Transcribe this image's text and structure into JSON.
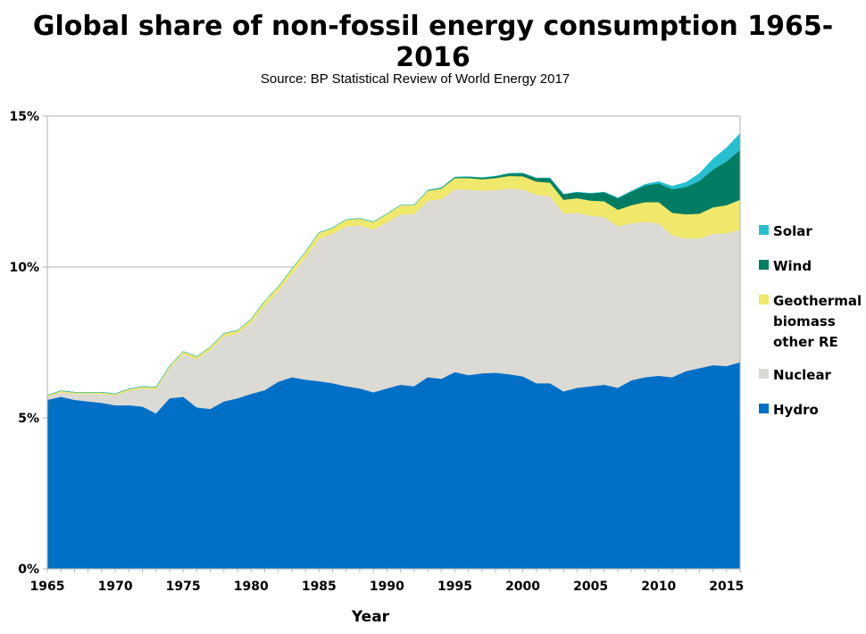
{
  "chart_data": {
    "type": "area",
    "stacked": true,
    "title": "Global share of non-fossil energy consumption 1965-2016",
    "subtitle": "Source: BP Statistical Review of World Energy 2017",
    "xlabel": "Year",
    "ylabel": "",
    "xlim": [
      1965,
      2016
    ],
    "ylim": [
      0,
      15
    ],
    "x_ticks": [
      "1965",
      "1970",
      "1975",
      "1980",
      "1985",
      "1990",
      "1995",
      "2000",
      "2005",
      "2010",
      "2015"
    ],
    "y_ticks": [
      "0%",
      "5%",
      "10%",
      "15%"
    ],
    "grid": "horizontal",
    "legend_position": "right",
    "x": [
      1965,
      1966,
      1967,
      1968,
      1969,
      1970,
      1971,
      1972,
      1973,
      1974,
      1975,
      1976,
      1977,
      1978,
      1979,
      1980,
      1981,
      1982,
      1983,
      1984,
      1985,
      1986,
      1987,
      1988,
      1989,
      1990,
      1991,
      1992,
      1993,
      1994,
      1995,
      1996,
      1997,
      1998,
      1999,
      2000,
      2001,
      2002,
      2003,
      2004,
      2005,
      2006,
      2007,
      2008,
      2009,
      2010,
      2011,
      2012,
      2013,
      2014,
      2015,
      2016
    ],
    "series": [
      {
        "name": "Hydro",
        "color": "#0070c6",
        "values": [
          5.6,
          5.7,
          5.6,
          5.55,
          5.5,
          5.42,
          5.42,
          5.38,
          5.15,
          5.65,
          5.7,
          5.35,
          5.3,
          5.55,
          5.65,
          5.8,
          5.92,
          6.2,
          6.35,
          6.27,
          6.22,
          6.15,
          6.05,
          5.98,
          5.85,
          5.98,
          6.1,
          6.05,
          6.35,
          6.3,
          6.52,
          6.42,
          6.48,
          6.5,
          6.45,
          6.38,
          6.15,
          6.15,
          5.88,
          6.0,
          6.05,
          6.1,
          6.0,
          6.25,
          6.35,
          6.4,
          6.35,
          6.55,
          6.65,
          6.75,
          6.72,
          6.85
        ]
      },
      {
        "name": "Nuclear",
        "color": "#dcdad5",
        "values": [
          0.1,
          0.15,
          0.2,
          0.25,
          0.3,
          0.33,
          0.48,
          0.6,
          0.8,
          1.0,
          1.42,
          1.6,
          1.95,
          2.15,
          2.15,
          2.35,
          2.8,
          3.0,
          3.42,
          4.05,
          4.72,
          4.95,
          5.3,
          5.4,
          5.4,
          5.5,
          5.65,
          5.7,
          5.85,
          5.95,
          6.05,
          6.15,
          6.05,
          6.05,
          6.15,
          6.2,
          6.25,
          6.2,
          5.9,
          5.8,
          5.65,
          5.55,
          5.35,
          5.2,
          5.15,
          5.05,
          4.7,
          4.4,
          4.3,
          4.35,
          4.4,
          4.4
        ]
      },
      {
        "name": "Geothermal biomass other RE",
        "color": "#f0e86a",
        "values": [
          0.05,
          0.05,
          0.05,
          0.05,
          0.05,
          0.05,
          0.06,
          0.06,
          0.07,
          0.07,
          0.08,
          0.08,
          0.1,
          0.1,
          0.1,
          0.12,
          0.15,
          0.15,
          0.17,
          0.18,
          0.2,
          0.2,
          0.22,
          0.23,
          0.25,
          0.28,
          0.3,
          0.3,
          0.33,
          0.35,
          0.38,
          0.38,
          0.38,
          0.4,
          0.42,
          0.43,
          0.43,
          0.45,
          0.45,
          0.48,
          0.5,
          0.53,
          0.55,
          0.6,
          0.65,
          0.7,
          0.75,
          0.8,
          0.82,
          0.88,
          0.93,
          0.98
        ]
      },
      {
        "name": "Wind",
        "color": "#007d62",
        "values": [
          0,
          0,
          0,
          0,
          0,
          0,
          0,
          0,
          0,
          0,
          0,
          0,
          0,
          0,
          0,
          0,
          0,
          0,
          0,
          0,
          0,
          0,
          0,
          0,
          0,
          0,
          0,
          0,
          0.01,
          0.02,
          0.03,
          0.04,
          0.05,
          0.06,
          0.08,
          0.1,
          0.12,
          0.15,
          0.18,
          0.2,
          0.24,
          0.3,
          0.38,
          0.45,
          0.55,
          0.62,
          0.78,
          0.9,
          1.08,
          1.25,
          1.45,
          1.65
        ]
      },
      {
        "name": "Solar",
        "color": "#27c0d0",
        "values": [
          0,
          0,
          0,
          0,
          0,
          0,
          0,
          0,
          0,
          0,
          0,
          0,
          0,
          0,
          0,
          0,
          0,
          0,
          0,
          0,
          0,
          0,
          0,
          0,
          0,
          0,
          0,
          0,
          0,
          0,
          0,
          0,
          0,
          0,
          0,
          0,
          0,
          0,
          0,
          0,
          0,
          0,
          0.01,
          0.02,
          0.04,
          0.06,
          0.1,
          0.15,
          0.25,
          0.35,
          0.45,
          0.55
        ]
      }
    ],
    "legend": [
      {
        "key": "solar",
        "lines": [
          "Solar"
        ],
        "color": "#27c0d0"
      },
      {
        "key": "wind",
        "lines": [
          "Wind"
        ],
        "color": "#007d62"
      },
      {
        "key": "geothermal",
        "lines": [
          "Geothermal",
          "biomass",
          "other RE"
        ],
        "color": "#f0e86a"
      },
      {
        "key": "nuclear",
        "lines": [
          "Nuclear"
        ],
        "color": "#dcdad5"
      },
      {
        "key": "hydro",
        "lines": [
          "Hydro"
        ],
        "color": "#0070c6"
      }
    ]
  }
}
